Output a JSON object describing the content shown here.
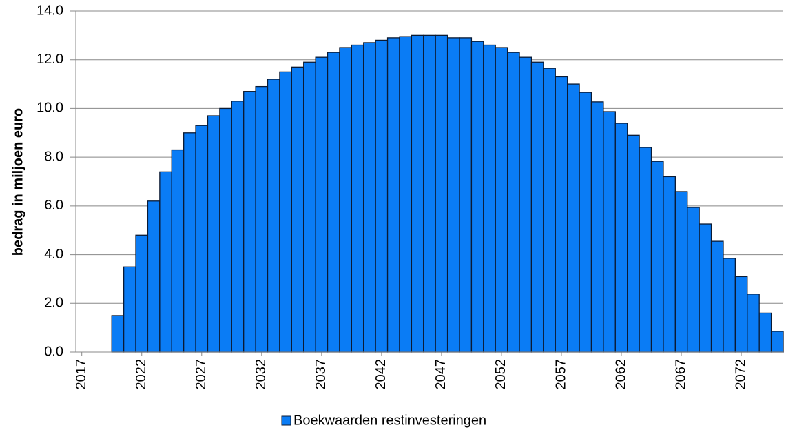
{
  "chart_data": {
    "type": "bar",
    "y_label": "bedrag in miljoen euro",
    "categories": [
      "2017",
      null,
      null,
      null,
      null,
      "2022",
      null,
      null,
      null,
      null,
      "2027",
      null,
      null,
      null,
      null,
      "2032",
      null,
      null,
      null,
      null,
      "2037",
      null,
      null,
      null,
      null,
      "2042",
      null,
      null,
      null,
      null,
      "2047",
      null,
      null,
      null,
      null,
      "2052",
      null,
      null,
      null,
      null,
      "2057",
      null,
      null,
      null,
      null,
      "2062",
      null,
      null,
      null,
      null,
      "2067",
      null,
      null,
      null,
      null,
      "2072",
      null,
      null,
      null
    ],
    "series": [
      {
        "name": "Boekwaarden restinvesteringen",
        "color": "#0a7cf5",
        "values": [
          null,
          null,
          null,
          1.5,
          3.5,
          4.8,
          6.2,
          7.4,
          8.3,
          9.0,
          9.3,
          9.7,
          10.0,
          10.3,
          10.7,
          10.9,
          11.2,
          11.5,
          11.7,
          11.9,
          12.1,
          12.3,
          12.5,
          12.6,
          12.7,
          12.8,
          12.9,
          12.95,
          13.0,
          13.0,
          13.0,
          12.9,
          12.9,
          12.75,
          12.6,
          12.5,
          12.3,
          12.1,
          11.9,
          11.65,
          11.3,
          11.0,
          10.66,
          10.27,
          9.87,
          9.39,
          8.9,
          8.4,
          7.83,
          7.2,
          6.59,
          5.94,
          5.26,
          4.55,
          3.85,
          3.1,
          2.38,
          1.6,
          0.85
        ]
      }
    ],
    "ylim": [
      0,
      14
    ],
    "yticks": [
      {
        "value": 0,
        "label": "0.0"
      },
      {
        "value": 2,
        "label": "2.0"
      },
      {
        "value": 4,
        "label": "4.0"
      },
      {
        "value": 6,
        "label": "6.0"
      },
      {
        "value": 8,
        "label": "8.0"
      },
      {
        "value": 10,
        "label": "10.0"
      },
      {
        "value": 12,
        "label": "12.0"
      },
      {
        "value": 14,
        "label": "14.0"
      }
    ],
    "grid": true
  }
}
